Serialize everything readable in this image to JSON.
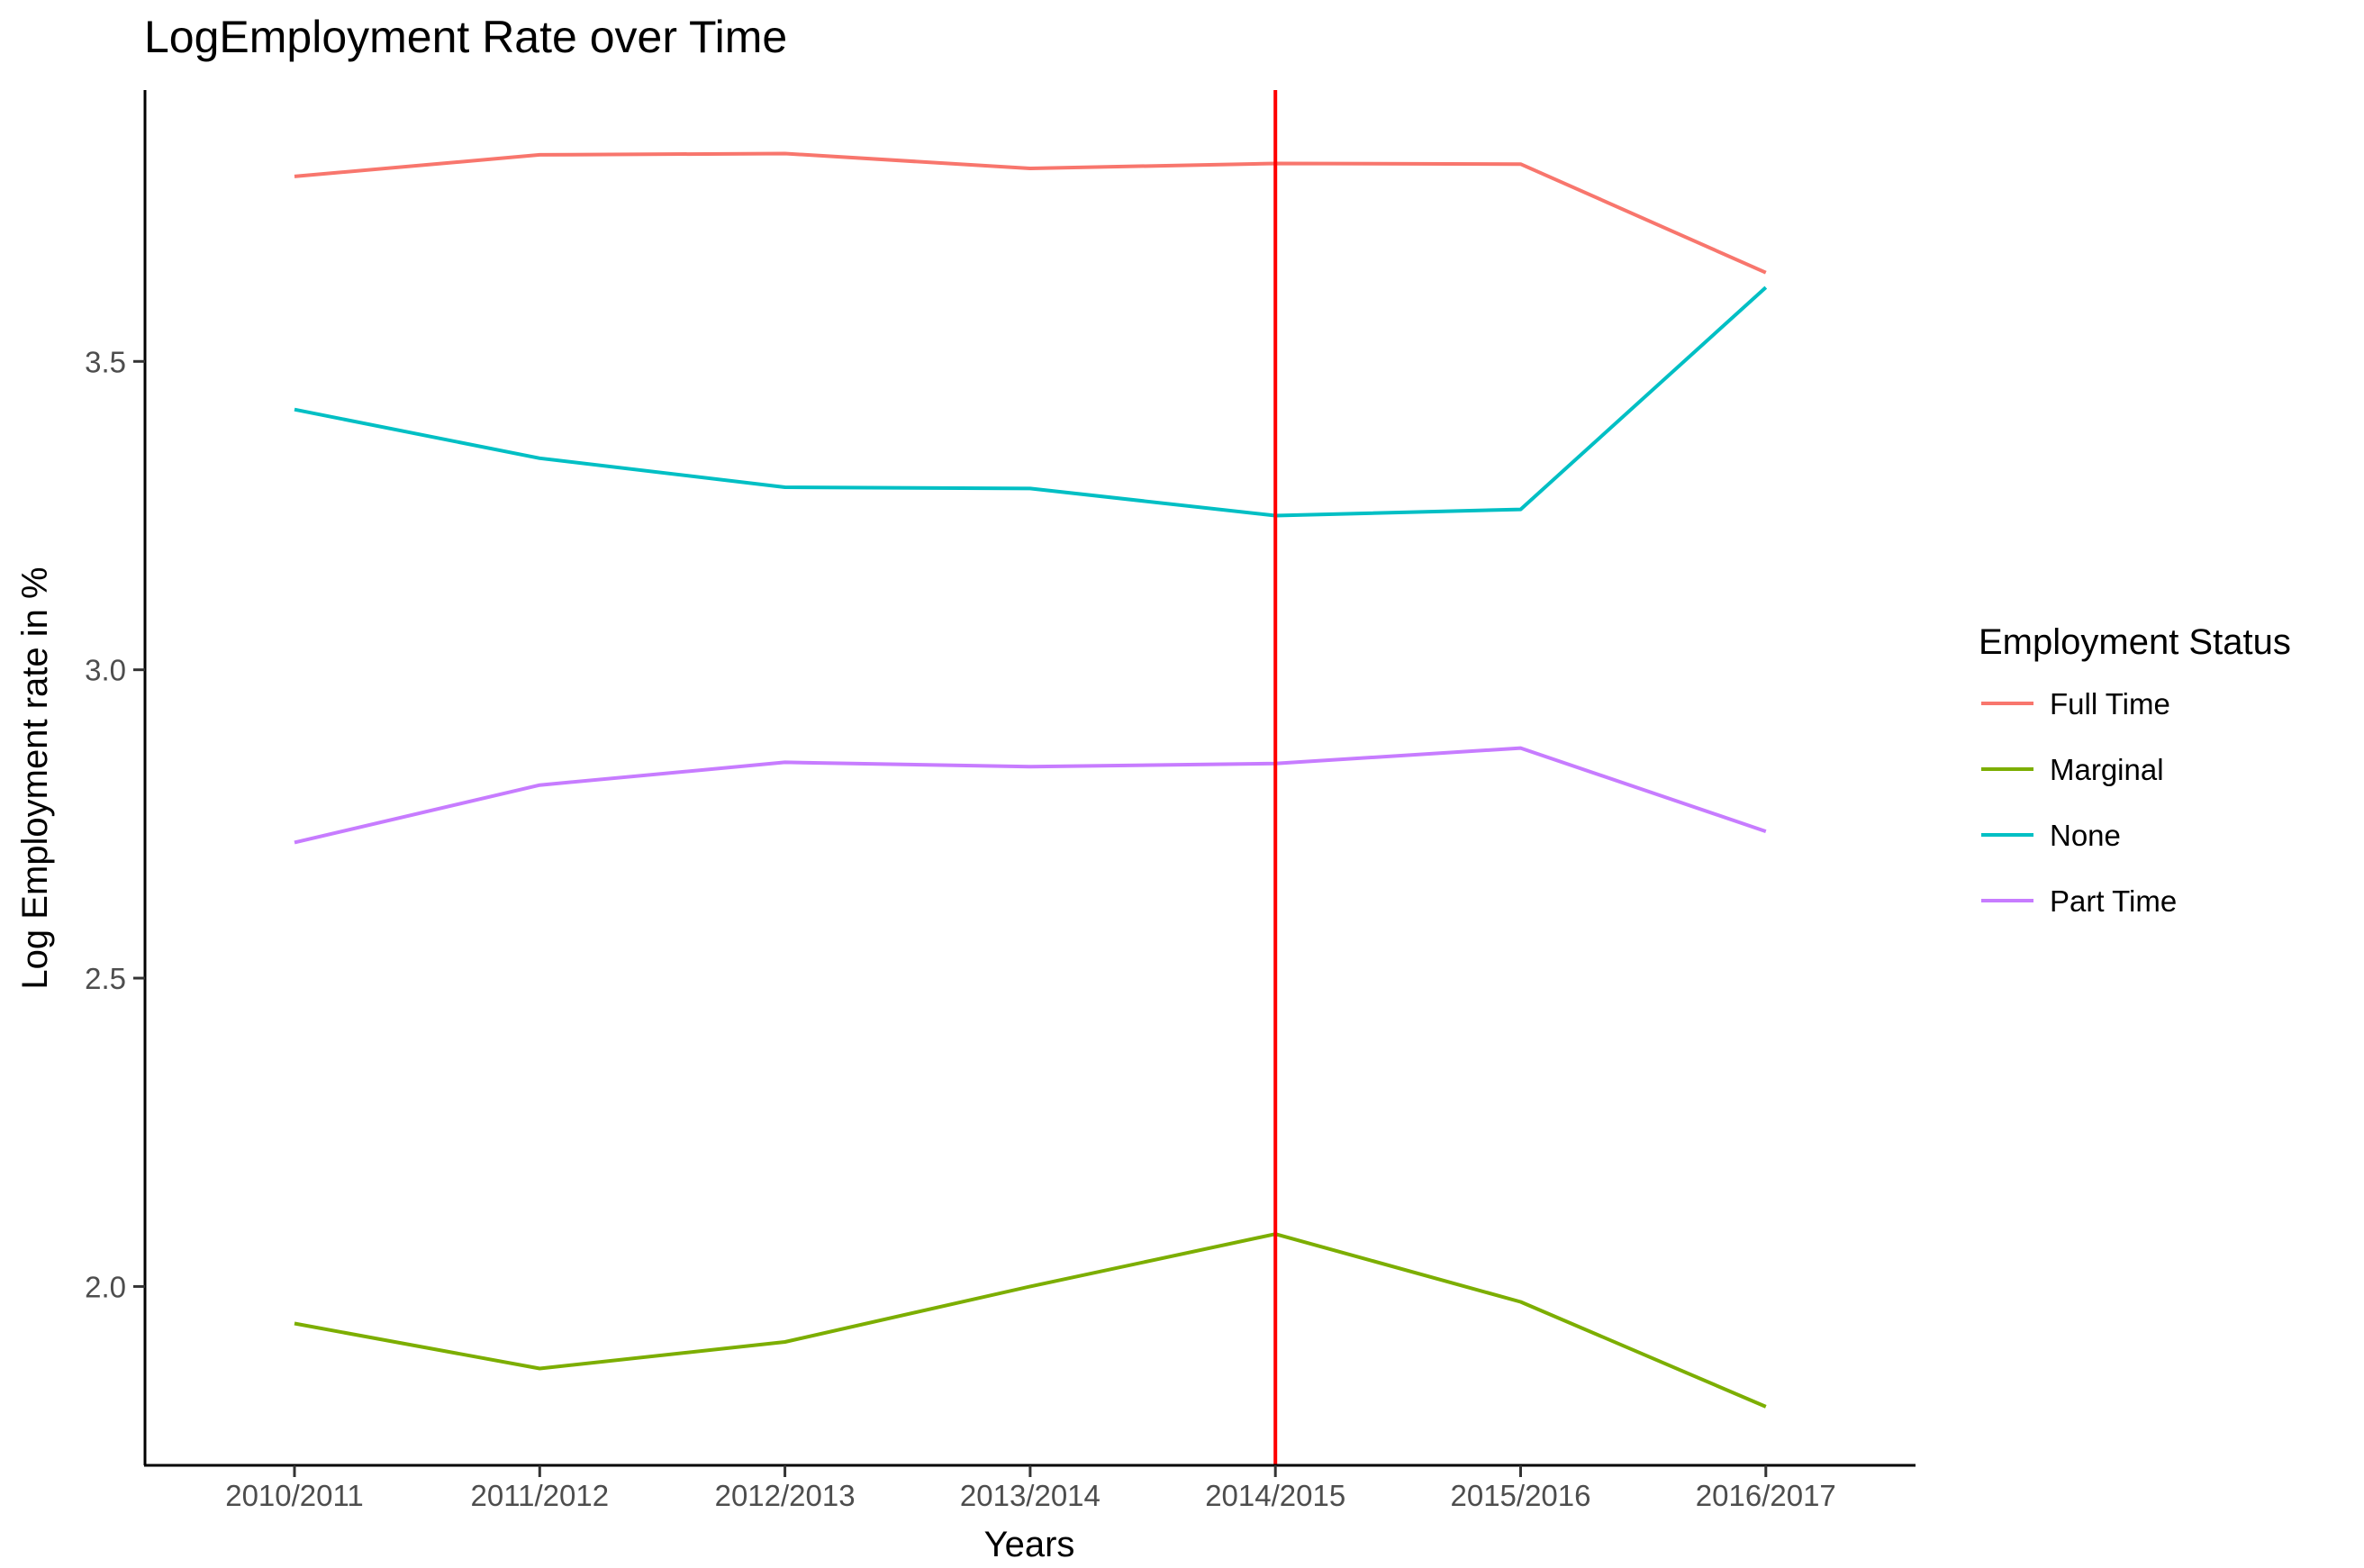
{
  "chart_data": {
    "type": "line",
    "title": "LogEmployment Rate over Time",
    "xlabel": "Years",
    "ylabel": "Log Employment rate in %",
    "categories": [
      "2010/2011",
      "2011/2012",
      "2012/2013",
      "2013/2014",
      "2014/2015",
      "2015/2016",
      "2016/2017"
    ],
    "ylim": [
      1.71,
      3.94
    ],
    "yticks": [
      2.0,
      2.5,
      3.0,
      3.5
    ],
    "ytick_labels": [
      "2.0",
      "2.5",
      "3.0",
      "3.5"
    ],
    "grid": false,
    "legend": {
      "title": "Employment Status",
      "position": "right"
    },
    "series": [
      {
        "name": "Full Time",
        "color": "#F8766D",
        "values": [
          3.8,
          3.835,
          3.837,
          3.813,
          3.821,
          3.82,
          3.644
        ]
      },
      {
        "name": "Marginal",
        "color": "#7CAE00",
        "values": [
          1.94,
          1.867,
          1.91,
          2.0,
          2.085,
          1.975,
          1.805
        ]
      },
      {
        "name": "None",
        "color": "#00BFC4",
        "values": [
          3.422,
          3.343,
          3.296,
          3.294,
          3.25,
          3.26,
          3.62
        ]
      },
      {
        "name": "Part Time",
        "color": "#C77CFF",
        "values": [
          2.72,
          2.813,
          2.85,
          2.843,
          2.848,
          2.873,
          2.738
        ]
      }
    ],
    "vline": {
      "category": "2014/2015",
      "color": "#FF0000"
    }
  }
}
